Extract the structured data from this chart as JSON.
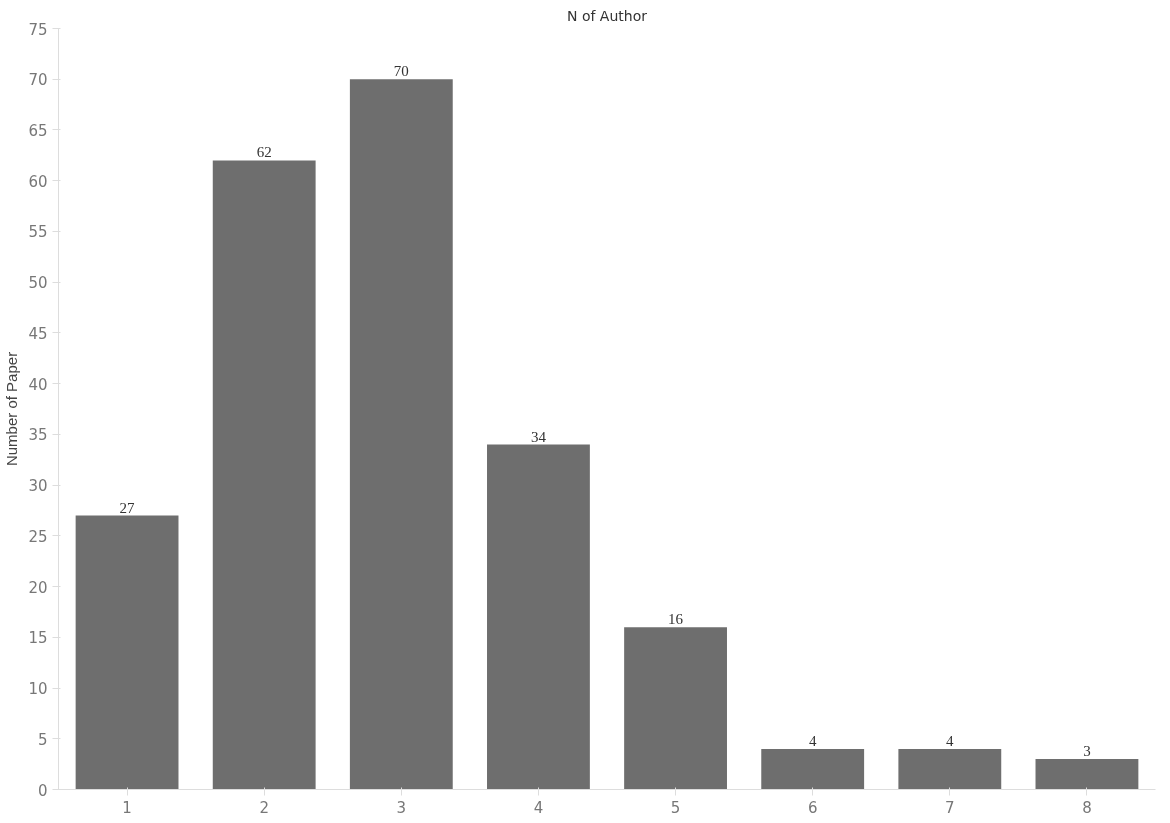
{
  "chart_data": {
    "type": "bar",
    "title": "N of Author",
    "ylabel": "Number of Paper",
    "categories": [
      "1",
      "2",
      "3",
      "4",
      "5",
      "6",
      "7",
      "8"
    ],
    "values": [
      27,
      62,
      70,
      34,
      16,
      4,
      4,
      3
    ],
    "color": "#6e6e6e",
    "ylim": [
      0,
      75
    ],
    "yticks": [
      0,
      5,
      10,
      15,
      20,
      25,
      30,
      35,
      40,
      45,
      50,
      55,
      60,
      65,
      70,
      75
    ],
    "grid": false,
    "data_labels": true
  }
}
